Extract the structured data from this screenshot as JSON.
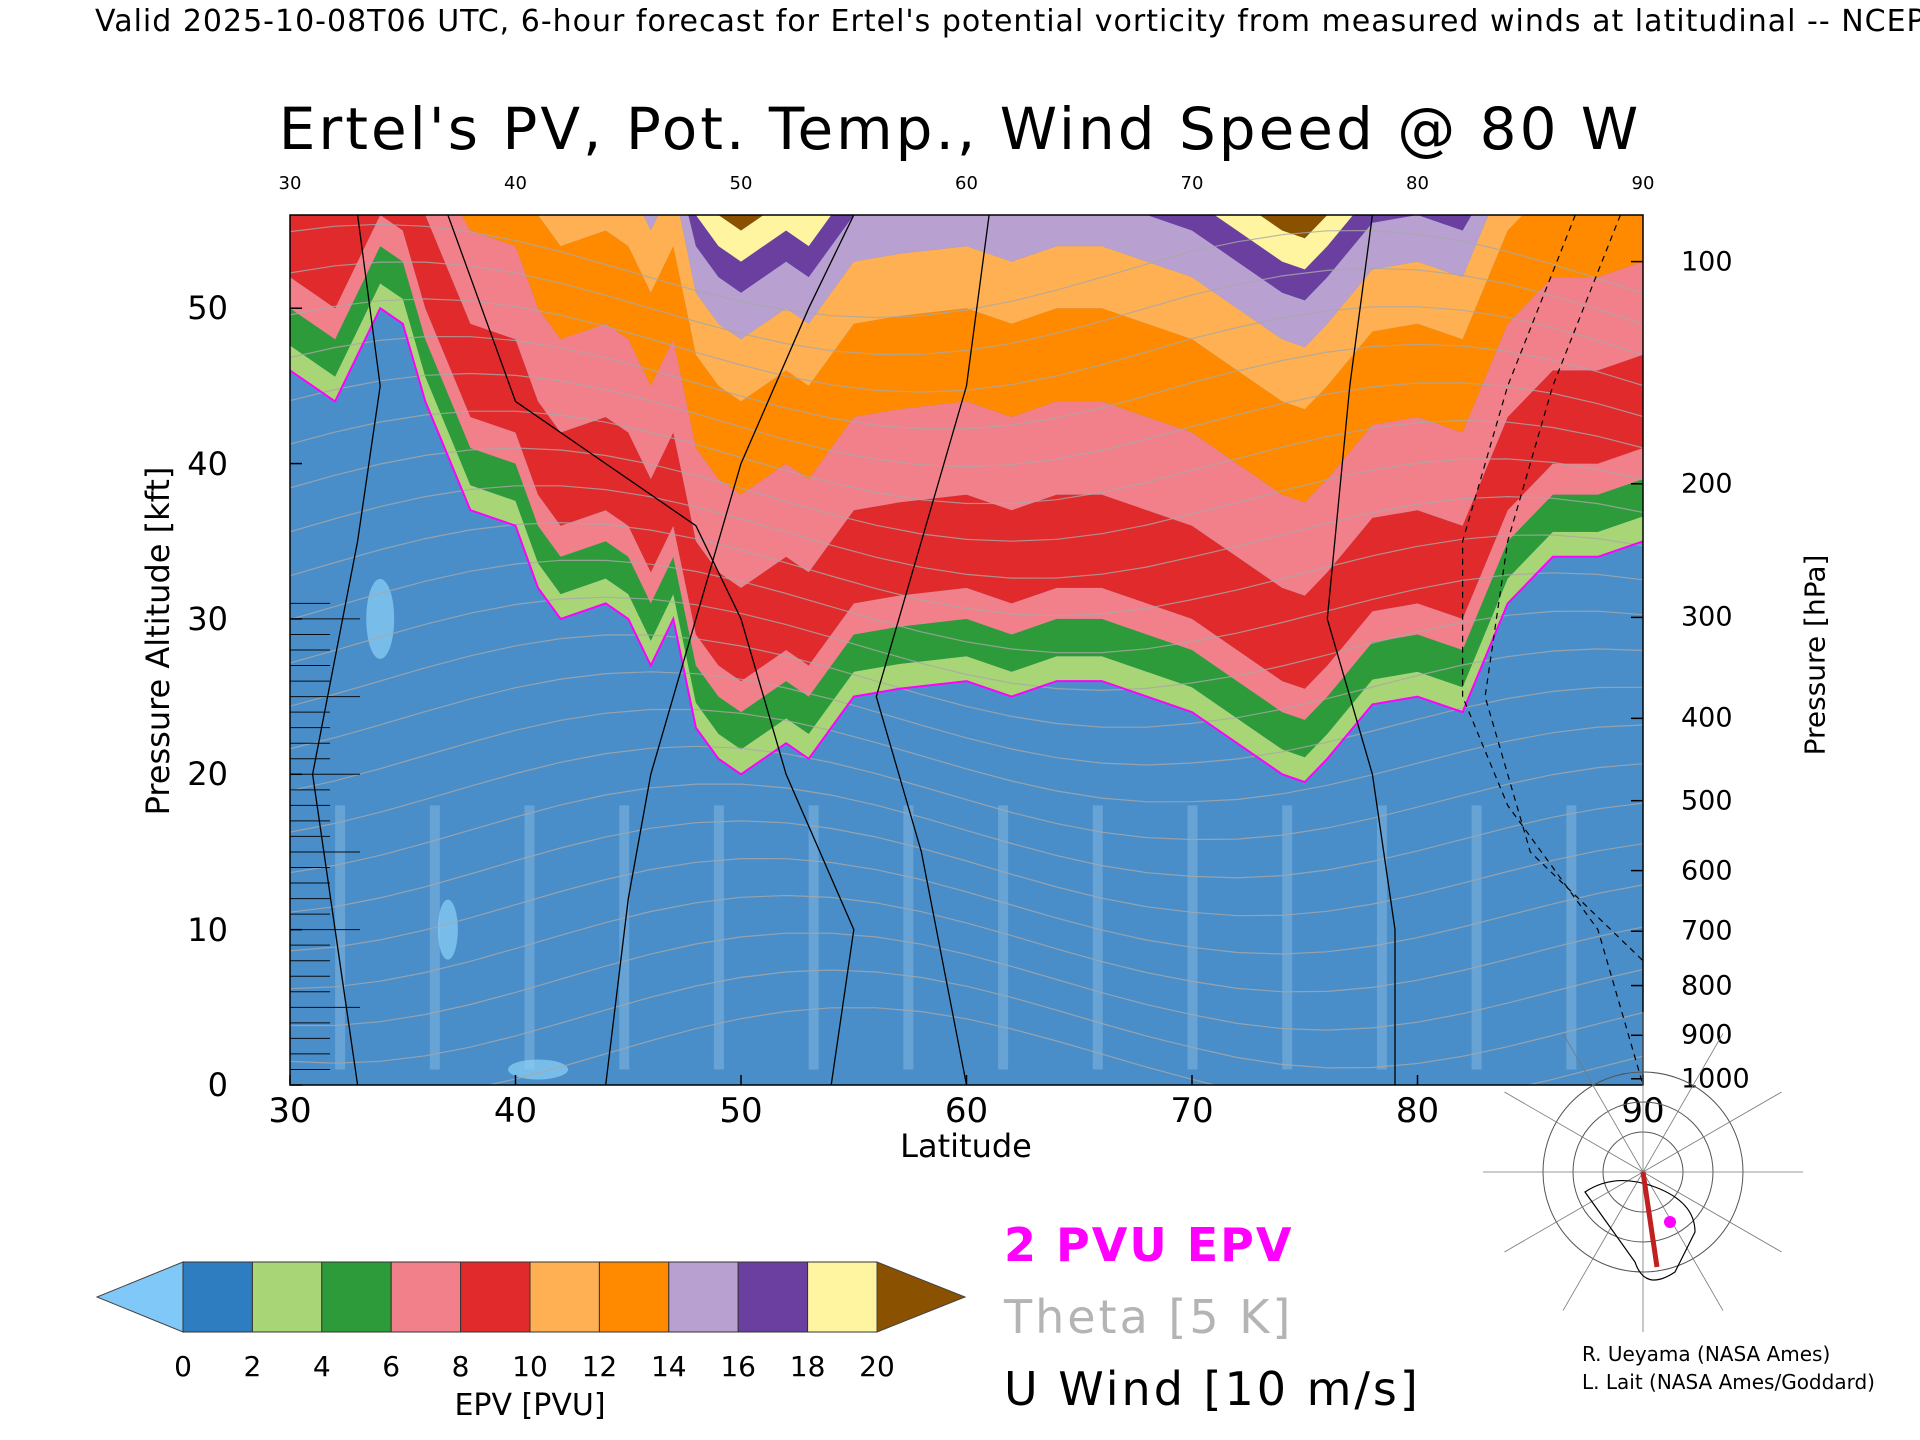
{
  "header": "Valid 2025-10-08T06 UTC, 6-hour forecast for Ertel's potential vorticity from measured winds at latitudinal -- NCEP",
  "chart_data": {
    "type": "heatmap",
    "title": "Ertel's PV, Pot. Temp., Wind Speed @ 80 W",
    "xlabel": "Latitude",
    "ylabel_left": "Pressure Altitude [kft]",
    "ylabel_right": "Pressure [hPa]",
    "xlim": [
      30,
      90
    ],
    "ylim": [
      0,
      56
    ],
    "x_ticks": [
      "30",
      "40",
      "50",
      "60",
      "70",
      "80",
      "90"
    ],
    "y_ticks_left": [
      "0",
      "10",
      "20",
      "30",
      "40",
      "50"
    ],
    "y_ticks_right": [
      "100",
      "200",
      "300",
      "400",
      "500",
      "600",
      "700",
      "800",
      "900",
      "1000"
    ],
    "y_ticks_right_kft": [
      53,
      38.7,
      30.1,
      23.6,
      18.3,
      13.8,
      9.9,
      6.4,
      3.2,
      0.4
    ],
    "tropopause_2pvu": {
      "lat": [
        30,
        32,
        34,
        35,
        36,
        38,
        40,
        41,
        42,
        44,
        45,
        46,
        47,
        48,
        49,
        50,
        52,
        53,
        55,
        57,
        60,
        62,
        64,
        66,
        68,
        70,
        72,
        74,
        75,
        76,
        78,
        80,
        82,
        84,
        86,
        88,
        90
      ],
      "kft": [
        46,
        44,
        50,
        49,
        44,
        37,
        36,
        32,
        30,
        31,
        30,
        27,
        30,
        23,
        21,
        20,
        22,
        21,
        25,
        25.5,
        26,
        25,
        26,
        26,
        25,
        24,
        22,
        20,
        19.5,
        21,
        24.5,
        25,
        24,
        31,
        34,
        34,
        35
      ]
    },
    "epv_ranges_kft": {
      "tropospheric_pvu": [
        0,
        2
      ],
      "lower_stratosphere_pvu": [
        4,
        10
      ],
      "upper_pvu": [
        12,
        20
      ]
    },
    "wind_contour_levels": [
      "0",
      "10",
      "30"
    ],
    "colorbar": {
      "label": "EPV [PVU]",
      "ticks": [
        "0",
        "2",
        "4",
        "6",
        "8",
        "10",
        "12",
        "14",
        "16",
        "18",
        "20"
      ],
      "colors": [
        "#2f7dc1",
        "#a8d676",
        "#2e9b3a",
        "#f2808a",
        "#e02a2c",
        "#ffb052",
        "#ff8a00",
        "#b8a0d0",
        "#6b3fa0",
        "#fff5a0",
        "#8a5200"
      ],
      "under_color": "#80c8f8",
      "over_color": "#8a5200"
    }
  },
  "legend": {
    "pvu": "2 PVU EPV",
    "theta": "Theta [5 K]",
    "wind": "U Wind [10 m/s]"
  },
  "credits": {
    "line1": "R. Ueyama (NASA Ames)",
    "line2": "L. Lait (NASA Ames/Goddard)"
  }
}
